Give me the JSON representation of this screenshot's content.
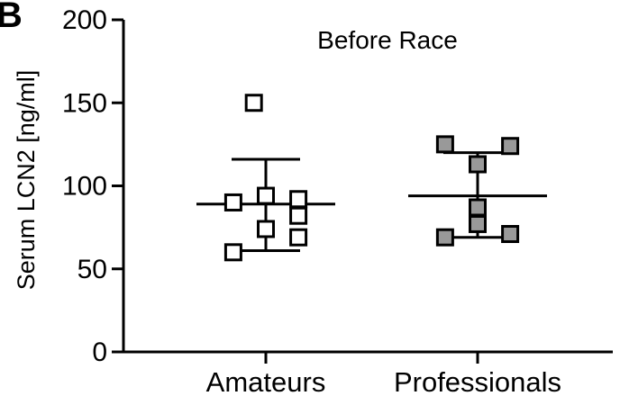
{
  "panel_letter": "B",
  "chart_data": {
    "type": "scatter",
    "title": "Before Race",
    "ylabel": "Serum LCN2 [ng/ml]",
    "xlabel": "",
    "ylim": [
      0,
      200
    ],
    "yticks": [
      0,
      50,
      100,
      150,
      200
    ],
    "grid": false,
    "categories": [
      "Amateurs",
      "Professionals"
    ],
    "series": [
      {
        "category": "Amateurs",
        "marker_fill": "#ffffff",
        "points": [
          {
            "x": -0.35,
            "y": 150
          },
          {
            "x": -0.95,
            "y": 90
          },
          {
            "x": 0.0,
            "y": 94
          },
          {
            "x": 0.95,
            "y": 92
          },
          {
            "x": 0.95,
            "y": 82
          },
          {
            "x": 0.0,
            "y": 74
          },
          {
            "x": 0.95,
            "y": 69
          },
          {
            "x": -0.95,
            "y": 60
          }
        ],
        "mean": 89,
        "error_low": 61,
        "error_high": 116
      },
      {
        "category": "Professionals",
        "marker_fill": "#999999",
        "points": [
          {
            "x": -0.95,
            "y": 125
          },
          {
            "x": 0.95,
            "y": 124
          },
          {
            "x": 0.0,
            "y": 113
          },
          {
            "x": 0.0,
            "y": 87
          },
          {
            "x": 0.0,
            "y": 77
          },
          {
            "x": 0.95,
            "y": 71
          },
          {
            "x": -0.95,
            "y": 69
          }
        ],
        "mean": 94,
        "error_low": 69,
        "error_high": 120
      }
    ]
  }
}
